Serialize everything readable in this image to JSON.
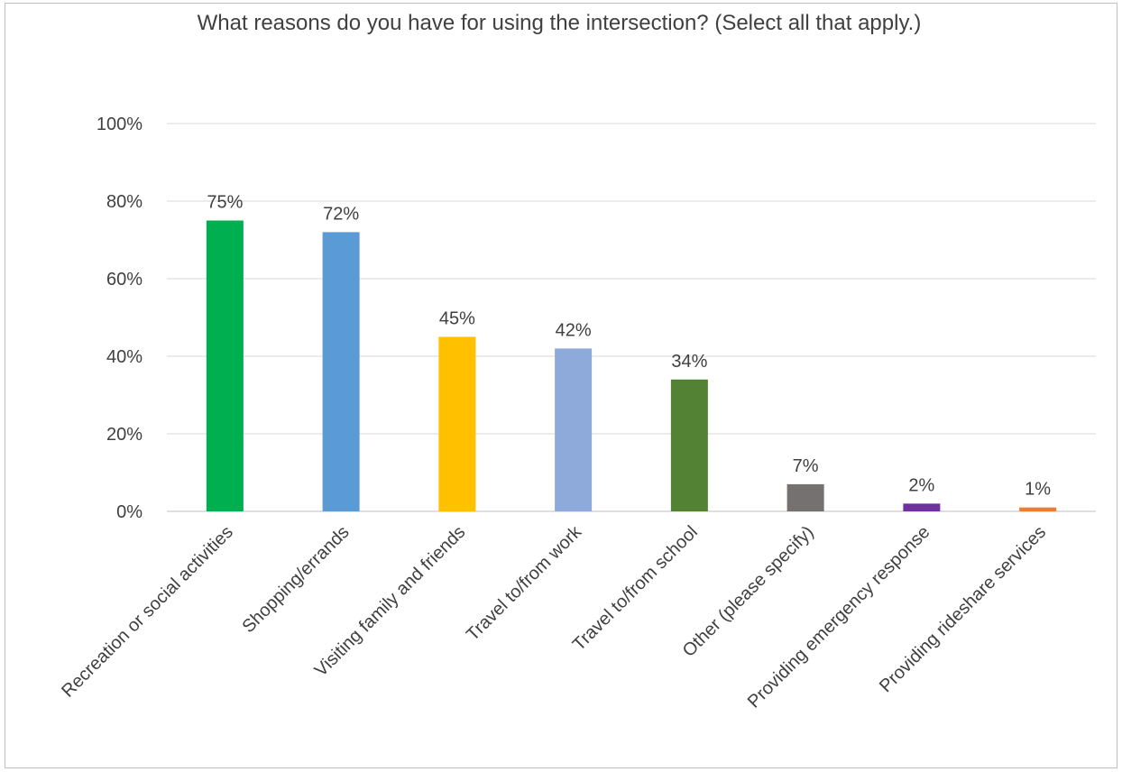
{
  "chart_data": {
    "type": "bar",
    "title": "What reasons do you have for using the intersection? (Select all that apply.)",
    "xlabel": "",
    "ylabel": "",
    "ylim": [
      0,
      100
    ],
    "yticks": [
      "0%",
      "20%",
      "40%",
      "60%",
      "80%",
      "100%"
    ],
    "grid": true,
    "categories": [
      "Recreation or social activities",
      "Shopping/errands",
      "Visiting family and friends",
      "Travel to/from work",
      "Travel to/from school",
      "Other (please specify)",
      "Providing emergency response",
      "Providing rideshare services"
    ],
    "values": [
      75,
      72,
      45,
      42,
      34,
      7,
      2,
      1
    ],
    "data_labels": [
      "75%",
      "72%",
      "45%",
      "42%",
      "34%",
      "7%",
      "2%",
      "1%"
    ],
    "colors": [
      "#00b050",
      "#5b9bd5",
      "#ffc000",
      "#8eaadb",
      "#548235",
      "#767171",
      "#7030a0",
      "#ed7d31"
    ]
  }
}
